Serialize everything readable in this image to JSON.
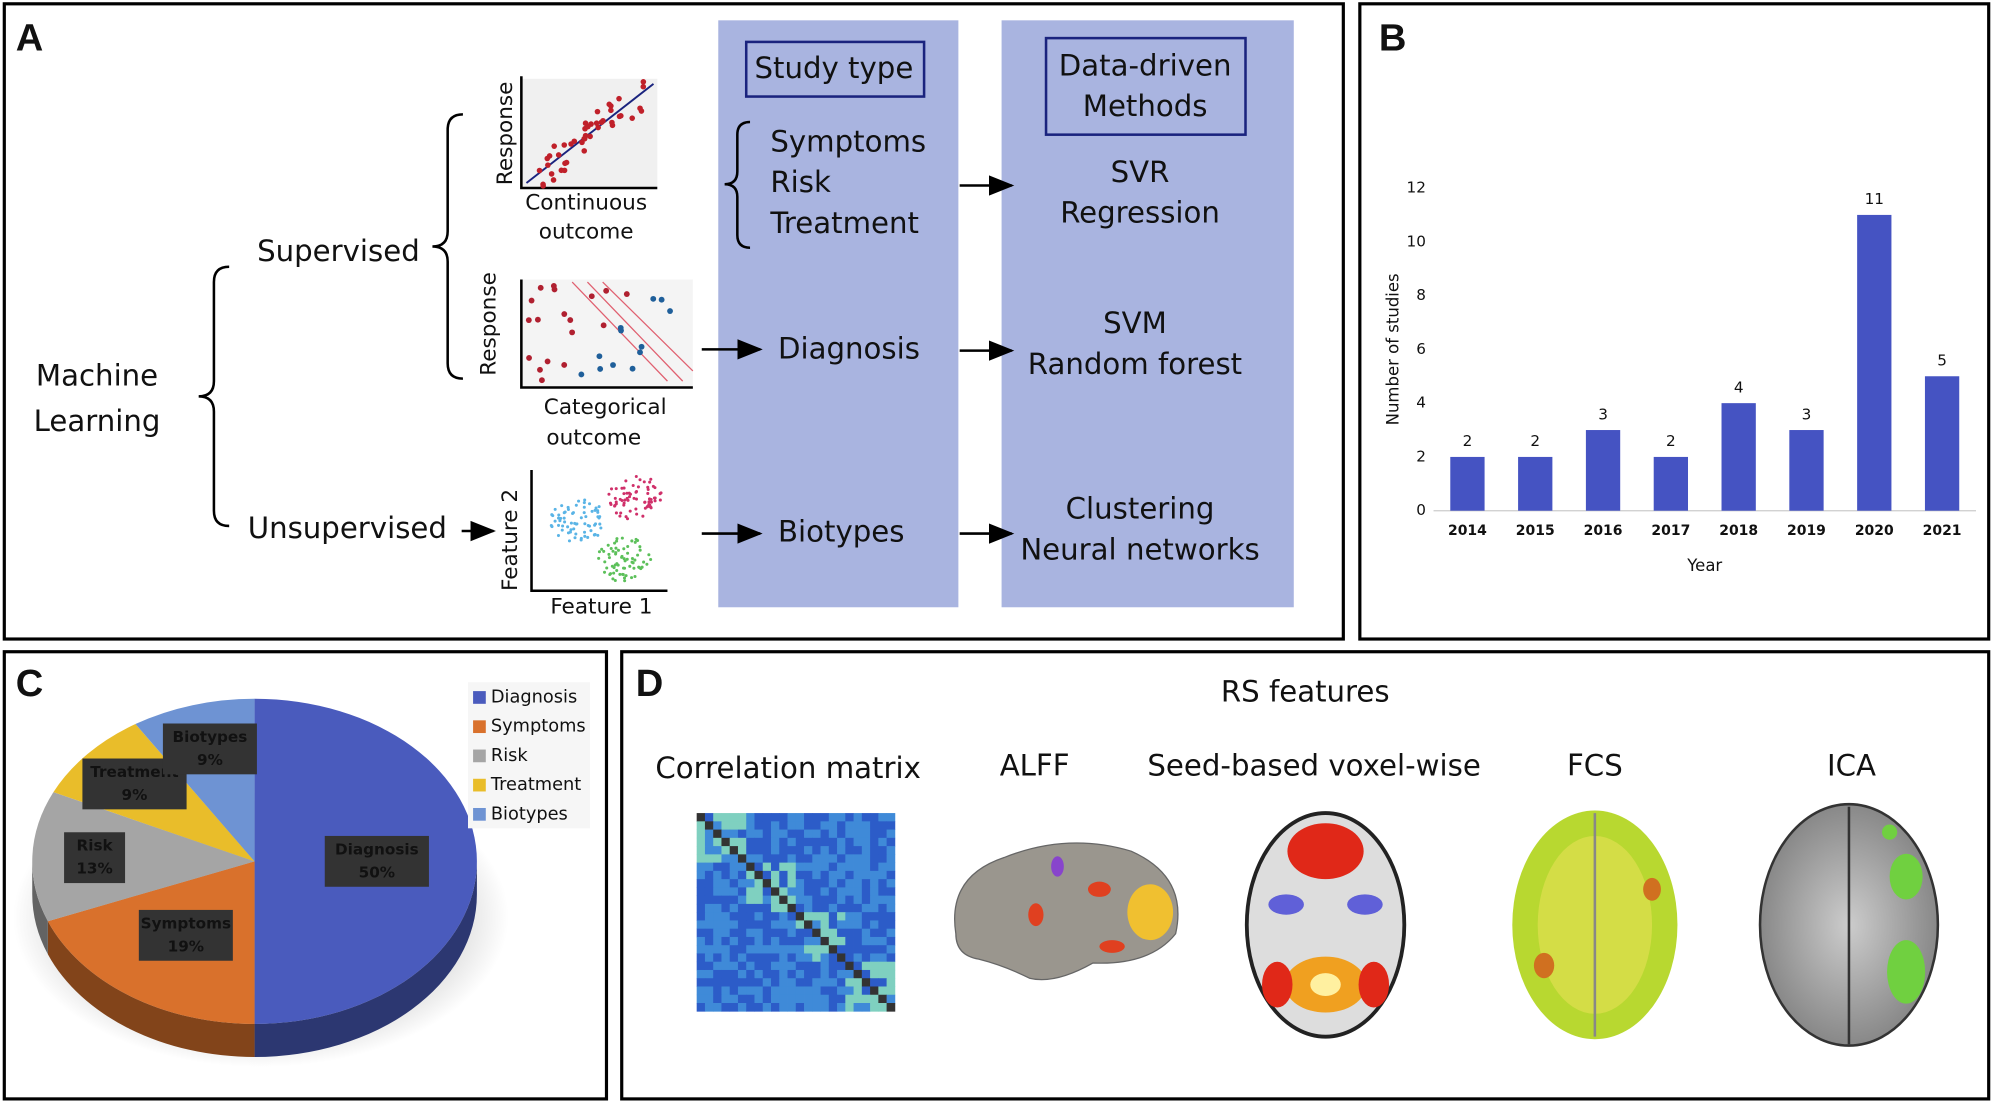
{
  "panel_labels": [
    "A",
    "B",
    "C",
    "D"
  ],
  "diagram": {
    "root": [
      "Machine",
      "Learning"
    ],
    "supervised": "Supervised",
    "unsupervised": "Unsupervised",
    "plots": [
      {
        "y_label": "Response",
        "x_label": [
          "Continuous",
          "outcome"
        ]
      },
      {
        "y_label": "Response",
        "x_label": [
          "Categorical",
          "outcome"
        ]
      },
      {
        "y_label": "Feature 2",
        "x_label": [
          "Feature 1"
        ]
      }
    ],
    "study_type": {
      "header": "Study type",
      "rows": [
        [
          "Symptoms",
          "Risk",
          "Treatment"
        ],
        [
          "Diagnosis"
        ],
        [
          "Biotypes"
        ]
      ]
    },
    "methods": {
      "header": [
        "Data-driven",
        "Methods"
      ],
      "rows": [
        [
          "SVR",
          "Regression"
        ],
        [
          "SVM",
          "Random forest"
        ],
        [
          "Clustering",
          "Neural networks"
        ]
      ]
    }
  },
  "chart_data": [
    {
      "type": "bar",
      "categories": [
        "2014",
        "2015",
        "2016",
        "2017",
        "2018",
        "2019",
        "2020",
        "2021"
      ],
      "values": [
        2,
        2,
        3,
        2,
        4,
        3,
        11,
        5
      ],
      "color": "#4553c2",
      "ylim": [
        0,
        12
      ],
      "yticks": [
        0,
        2,
        4,
        6,
        8,
        10,
        12
      ],
      "x_label": "Year",
      "y_label": "Number of studies"
    },
    {
      "type": "pie",
      "categories": [
        "Diagnosis",
        "Symptoms",
        "Risk",
        "Treatment",
        "Biotypes"
      ],
      "values": [
        50,
        19,
        13,
        9,
        9
      ],
      "value_labels": [
        "50%",
        "19%",
        "13%",
        "9%",
        "9%"
      ],
      "colors": [
        "#4a5bbd",
        "#d9712c",
        "#a5a5a5",
        "#e9bd2a",
        "#6e93d3"
      ],
      "legend": "upper right"
    }
  ],
  "rs_panel": {
    "title": "RS features",
    "labels": [
      "Correlation matrix",
      "ALFF",
      "Seed-based voxel-wise",
      "FCS",
      "ICA"
    ]
  }
}
